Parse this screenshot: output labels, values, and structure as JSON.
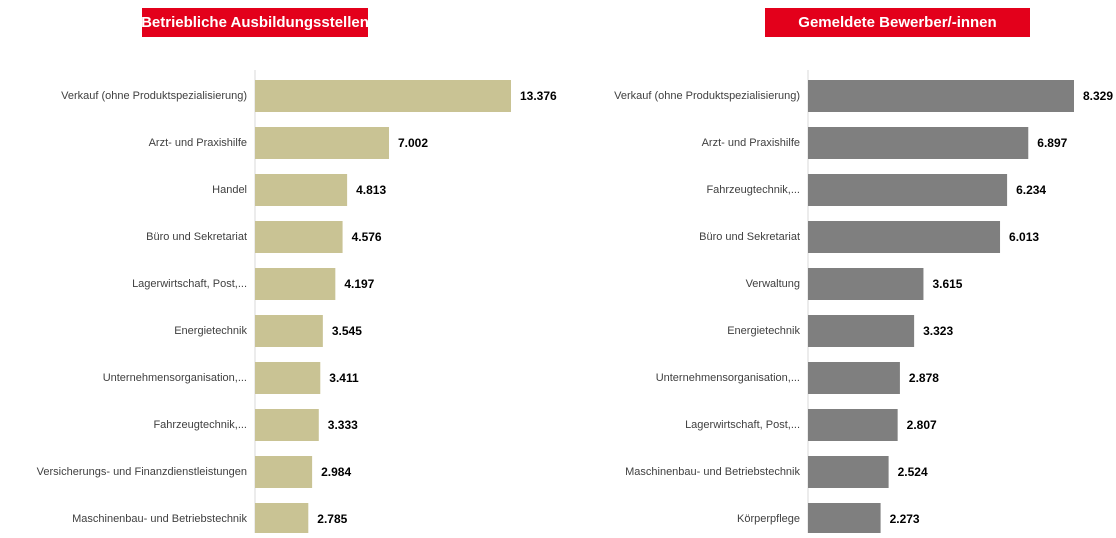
{
  "chart_data": [
    {
      "type": "hbar",
      "title": "Betriebliche Ausbildungsstellen",
      "color": "#c9c394",
      "categories": [
        "Verkauf (ohne Produktspezialisierung)",
        "Arzt- und Praxishilfe",
        "Handel",
        "Büro und Sekretariat",
        "Lagerwirtschaft, Post,...",
        "Energietechnik",
        "Unternehmensorganisation,...",
        "Fahrzeugtechnik,...",
        "Versicherungs- und Finanzdienstleistungen",
        "Maschinenbau- und Betriebstechnik"
      ],
      "values": [
        13376,
        7002,
        4813,
        4576,
        4197,
        3545,
        3411,
        3333,
        2984,
        2785
      ],
      "value_labels": [
        "13.376",
        "7.002",
        "4.813",
        "4.576",
        "4.197",
        "3.545",
        "3.411",
        "3.333",
        "2.984",
        "2.785"
      ]
    },
    {
      "type": "hbar",
      "title": "Gemeldete Bewerber/-innen",
      "color": "#7f7f7f",
      "categories": [
        "Verkauf (ohne Produktspezialisierung)",
        "Arzt- und Praxishilfe",
        "Fahrzeugtechnik,...",
        "Büro und Sekretariat",
        "Verwaltung",
        "Energietechnik",
        "Unternehmensorganisation,...",
        "Lagerwirtschaft, Post,...",
        "Maschinenbau- und Betriebstechnik",
        "Körperpflege"
      ],
      "values": [
        8329,
        6897,
        6234,
        6013,
        3615,
        3323,
        2878,
        2807,
        2524,
        2273
      ],
      "value_labels": [
        "8.329",
        "6.897",
        "6.234",
        "6.013",
        "3.615",
        "3.323",
        "2.878",
        "2.807",
        "2.524",
        "2.273"
      ]
    }
  ]
}
